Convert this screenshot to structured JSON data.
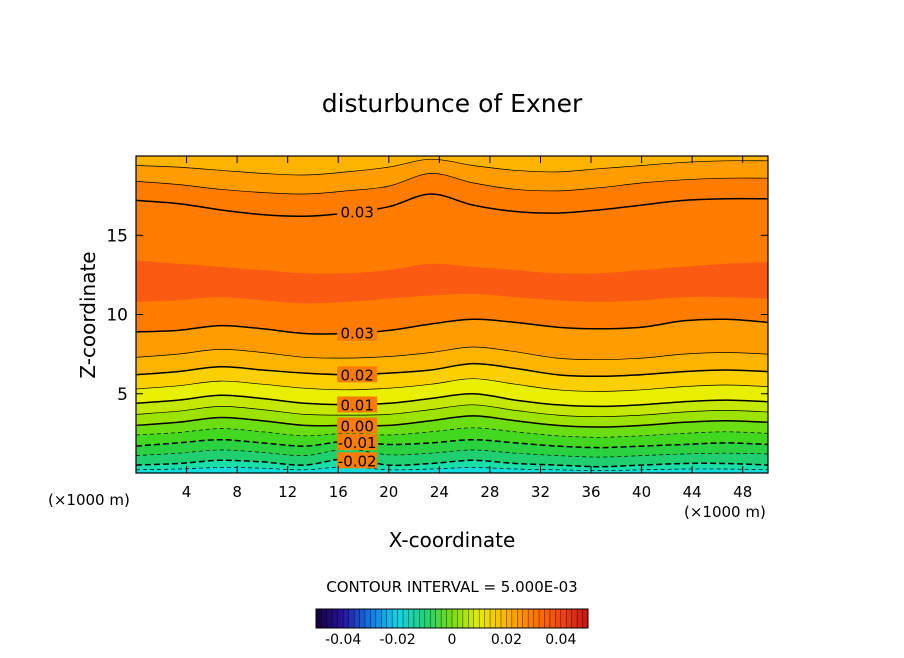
{
  "chart_data": {
    "type": "contour",
    "title": "disturbunce of Exner",
    "xlabel": "X-coordinate",
    "ylabel": "Z-coordinate",
    "x_unit_left": "(×1000 m)",
    "x_unit_right": "(×1000 m)",
    "xlim": [
      0,
      50
    ],
    "ylim": [
      0,
      20
    ],
    "x_ticks": [
      4,
      8,
      12,
      16,
      20,
      24,
      28,
      32,
      36,
      40,
      44,
      48
    ],
    "y_ticks": [
      5,
      10,
      15
    ],
    "contour_interval_text": "CONTOUR INTERVAL = 5.000E-03",
    "colorbar": {
      "range": [
        -0.05,
        0.05
      ],
      "ticks": [
        "-0.04",
        "-0.02",
        "0",
        "0.02",
        "0.04"
      ],
      "tick_values": [
        -0.04,
        -0.02,
        0,
        0.02,
        0.04
      ]
    },
    "level_colors": {
      "-0.04": "#1e9ef0",
      "-0.035": "#1ec2f0",
      "-0.03": "#10dcdc",
      "-0.025": "#18e0a8",
      "-0.02": "#20d070",
      "-0.015": "#2ad242",
      "-0.01": "#42d820",
      "-0.005": "#6ade10",
      "0": "#9ce400",
      "0.005": "#c4e800",
      "0.01": "#e8f000",
      "0.015": "#fad000",
      "0.02": "#fcb400",
      "0.025": "#fe9c00",
      "0.03": "#ff7c00",
      "0.035": "#fa5a12"
    },
    "labeled_contours": [
      {
        "text": "0.03",
        "level": 0.03,
        "z": [
          17.2,
          17.0,
          16.6,
          16.3,
          16.2,
          16.4,
          16.8,
          17.6,
          16.9,
          16.5,
          16.4,
          16.6,
          16.9,
          17.2,
          17.3,
          17.3
        ]
      },
      {
        "text": "0.03",
        "level": 0.03,
        "z": [
          8.9,
          9.0,
          9.3,
          9.1,
          8.8,
          8.8,
          9.0,
          9.4,
          9.7,
          9.5,
          9.2,
          9.1,
          9.2,
          9.6,
          9.7,
          9.5
        ]
      },
      {
        "text": "0.02",
        "level": 0.02,
        "z": [
          6.2,
          6.4,
          6.7,
          6.5,
          6.3,
          6.2,
          6.3,
          6.5,
          6.9,
          6.6,
          6.2,
          6.1,
          6.2,
          6.4,
          6.5,
          6.4
        ]
      },
      {
        "text": "0.01",
        "level": 0.01,
        "z": [
          4.4,
          4.6,
          4.9,
          4.7,
          4.4,
          4.3,
          4.4,
          4.7,
          5.0,
          4.6,
          4.3,
          4.2,
          4.3,
          4.5,
          4.6,
          4.5
        ]
      },
      {
        "text": "0.00",
        "level": 0.0,
        "z": [
          3.0,
          3.2,
          3.5,
          3.3,
          3.0,
          3.0,
          3.0,
          3.3,
          3.6,
          3.3,
          3.0,
          2.9,
          3.0,
          3.2,
          3.3,
          3.2
        ]
      },
      {
        "text": "-0.01",
        "level": -0.01,
        "z": [
          1.7,
          1.9,
          2.1,
          1.9,
          1.7,
          2.0,
          1.8,
          1.9,
          2.1,
          1.9,
          1.7,
          1.6,
          1.7,
          1.8,
          1.9,
          1.8
        ]
      },
      {
        "text": "-0.02",
        "level": -0.02,
        "z": [
          0.5,
          0.6,
          0.8,
          0.7,
          0.5,
          0.9,
          0.5,
          0.6,
          0.8,
          0.6,
          0.5,
          0.4,
          0.5,
          0.6,
          0.6,
          0.5
        ]
      }
    ],
    "unlabeled_contours": [
      {
        "level": -0.025,
        "z": [
          0.2,
          0.25,
          0.35,
          0.3,
          0.2,
          0.4,
          0.2,
          0.25,
          0.35,
          0.25,
          0.2,
          0.15,
          0.2,
          0.25,
          0.25,
          0.2
        ]
      },
      {
        "level": -0.015,
        "z": [
          1.1,
          1.25,
          1.45,
          1.3,
          1.1,
          1.5,
          1.15,
          1.25,
          1.45,
          1.25,
          1.1,
          1.0,
          1.1,
          1.2,
          1.25,
          1.2
        ]
      },
      {
        "level": -0.005,
        "z": [
          2.4,
          2.55,
          2.8,
          2.6,
          2.35,
          2.5,
          2.4,
          2.6,
          2.85,
          2.6,
          2.35,
          2.25,
          2.35,
          2.5,
          2.6,
          2.5
        ]
      },
      {
        "level": 0.005,
        "z": [
          3.7,
          3.9,
          4.2,
          4.0,
          3.7,
          3.65,
          3.7,
          4.0,
          4.3,
          3.95,
          3.65,
          3.55,
          3.65,
          3.85,
          3.95,
          3.85
        ]
      },
      {
        "level": 0.015,
        "z": [
          5.3,
          5.5,
          5.8,
          5.6,
          5.35,
          5.25,
          5.35,
          5.6,
          5.95,
          5.6,
          5.25,
          5.15,
          5.25,
          5.45,
          5.55,
          5.45
        ]
      },
      {
        "level": 0.025,
        "z": [
          7.3,
          7.5,
          7.8,
          7.6,
          7.3,
          7.25,
          7.35,
          7.6,
          7.95,
          7.65,
          7.25,
          7.15,
          7.25,
          7.5,
          7.6,
          7.5
        ]
      }
    ],
    "upper_band_contours": [
      {
        "level": 0.025,
        "z": [
          18.4,
          18.2,
          17.9,
          17.7,
          17.6,
          17.8,
          18.1,
          18.9,
          18.3,
          17.9,
          17.8,
          18.0,
          18.3,
          18.5,
          18.6,
          18.6
        ]
      },
      {
        "level": 0.02,
        "z": [
          19.4,
          19.3,
          19.1,
          18.9,
          18.8,
          19.0,
          19.3,
          19.8,
          19.4,
          19.1,
          19.0,
          19.2,
          19.4,
          19.6,
          19.7,
          19.7
        ]
      }
    ],
    "core_region": {
      "level": 0.035,
      "z_bottom": [
        10.8,
        10.9,
        11.1,
        10.9,
        10.7,
        10.8,
        11.0,
        11.2,
        11.3,
        11.1,
        10.9,
        10.8,
        10.9,
        11.1,
        11.1,
        11.0
      ],
      "z_top": [
        13.4,
        13.2,
        13.0,
        12.8,
        12.6,
        12.6,
        12.8,
        13.2,
        13.0,
        12.8,
        12.6,
        12.6,
        12.8,
        13.0,
        13.2,
        13.3
      ]
    }
  }
}
